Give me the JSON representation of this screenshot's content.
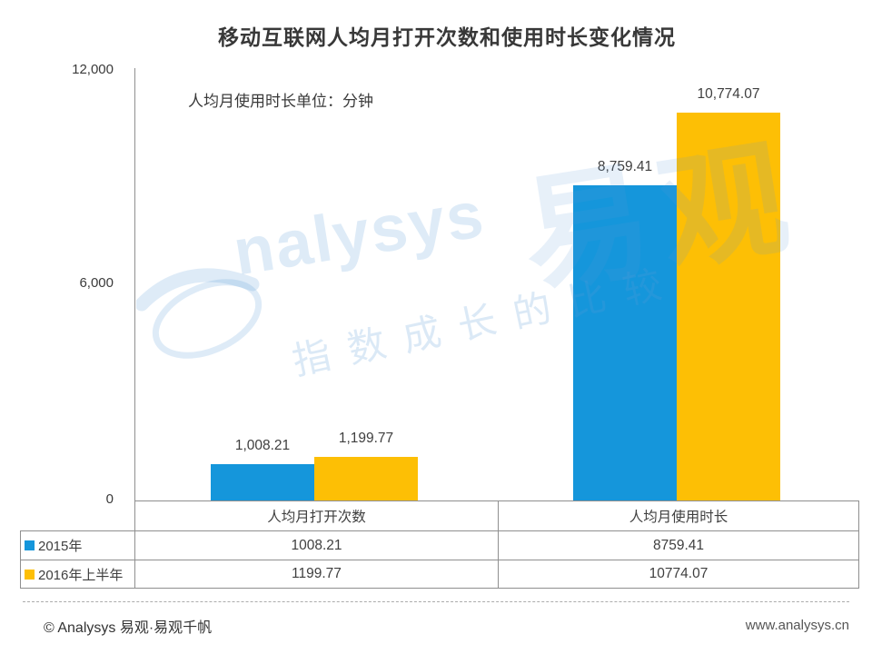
{
  "chart_data": {
    "type": "bar",
    "title": "移动互联网人均月打开次数和使用时长变化情况",
    "subtitle": "人均月使用时长单位：分钟",
    "categories": [
      "人均月打开次数",
      "人均月使用时长"
    ],
    "series": [
      {
        "name": "2015年",
        "color": "#1596DB",
        "values": [
          1008.21,
          8759.41
        ],
        "bar_labels": [
          "1,008.21",
          "8,759.41"
        ],
        "table_values": [
          "1008.21",
          "8759.41"
        ]
      },
      {
        "name": "2016年上半年",
        "color": "#FDBF05",
        "values": [
          1199.77,
          10774.07
        ],
        "bar_labels": [
          "1,199.77",
          "10,774.07"
        ],
        "table_values": [
          "1199.77",
          "10774.07"
        ]
      }
    ],
    "ylim": [
      0,
      12000
    ],
    "yticks": [
      "12,000",
      "6,000",
      "0"
    ],
    "grid": false,
    "legend_position": "table-left"
  },
  "watermark": {
    "brand_latin": "nalysys",
    "brand_cn": "易观",
    "slogan": "指数成长的比较"
  },
  "footer": {
    "copyright": "© Analysys 易观·易观千帆",
    "website": "www.analysys.cn"
  }
}
